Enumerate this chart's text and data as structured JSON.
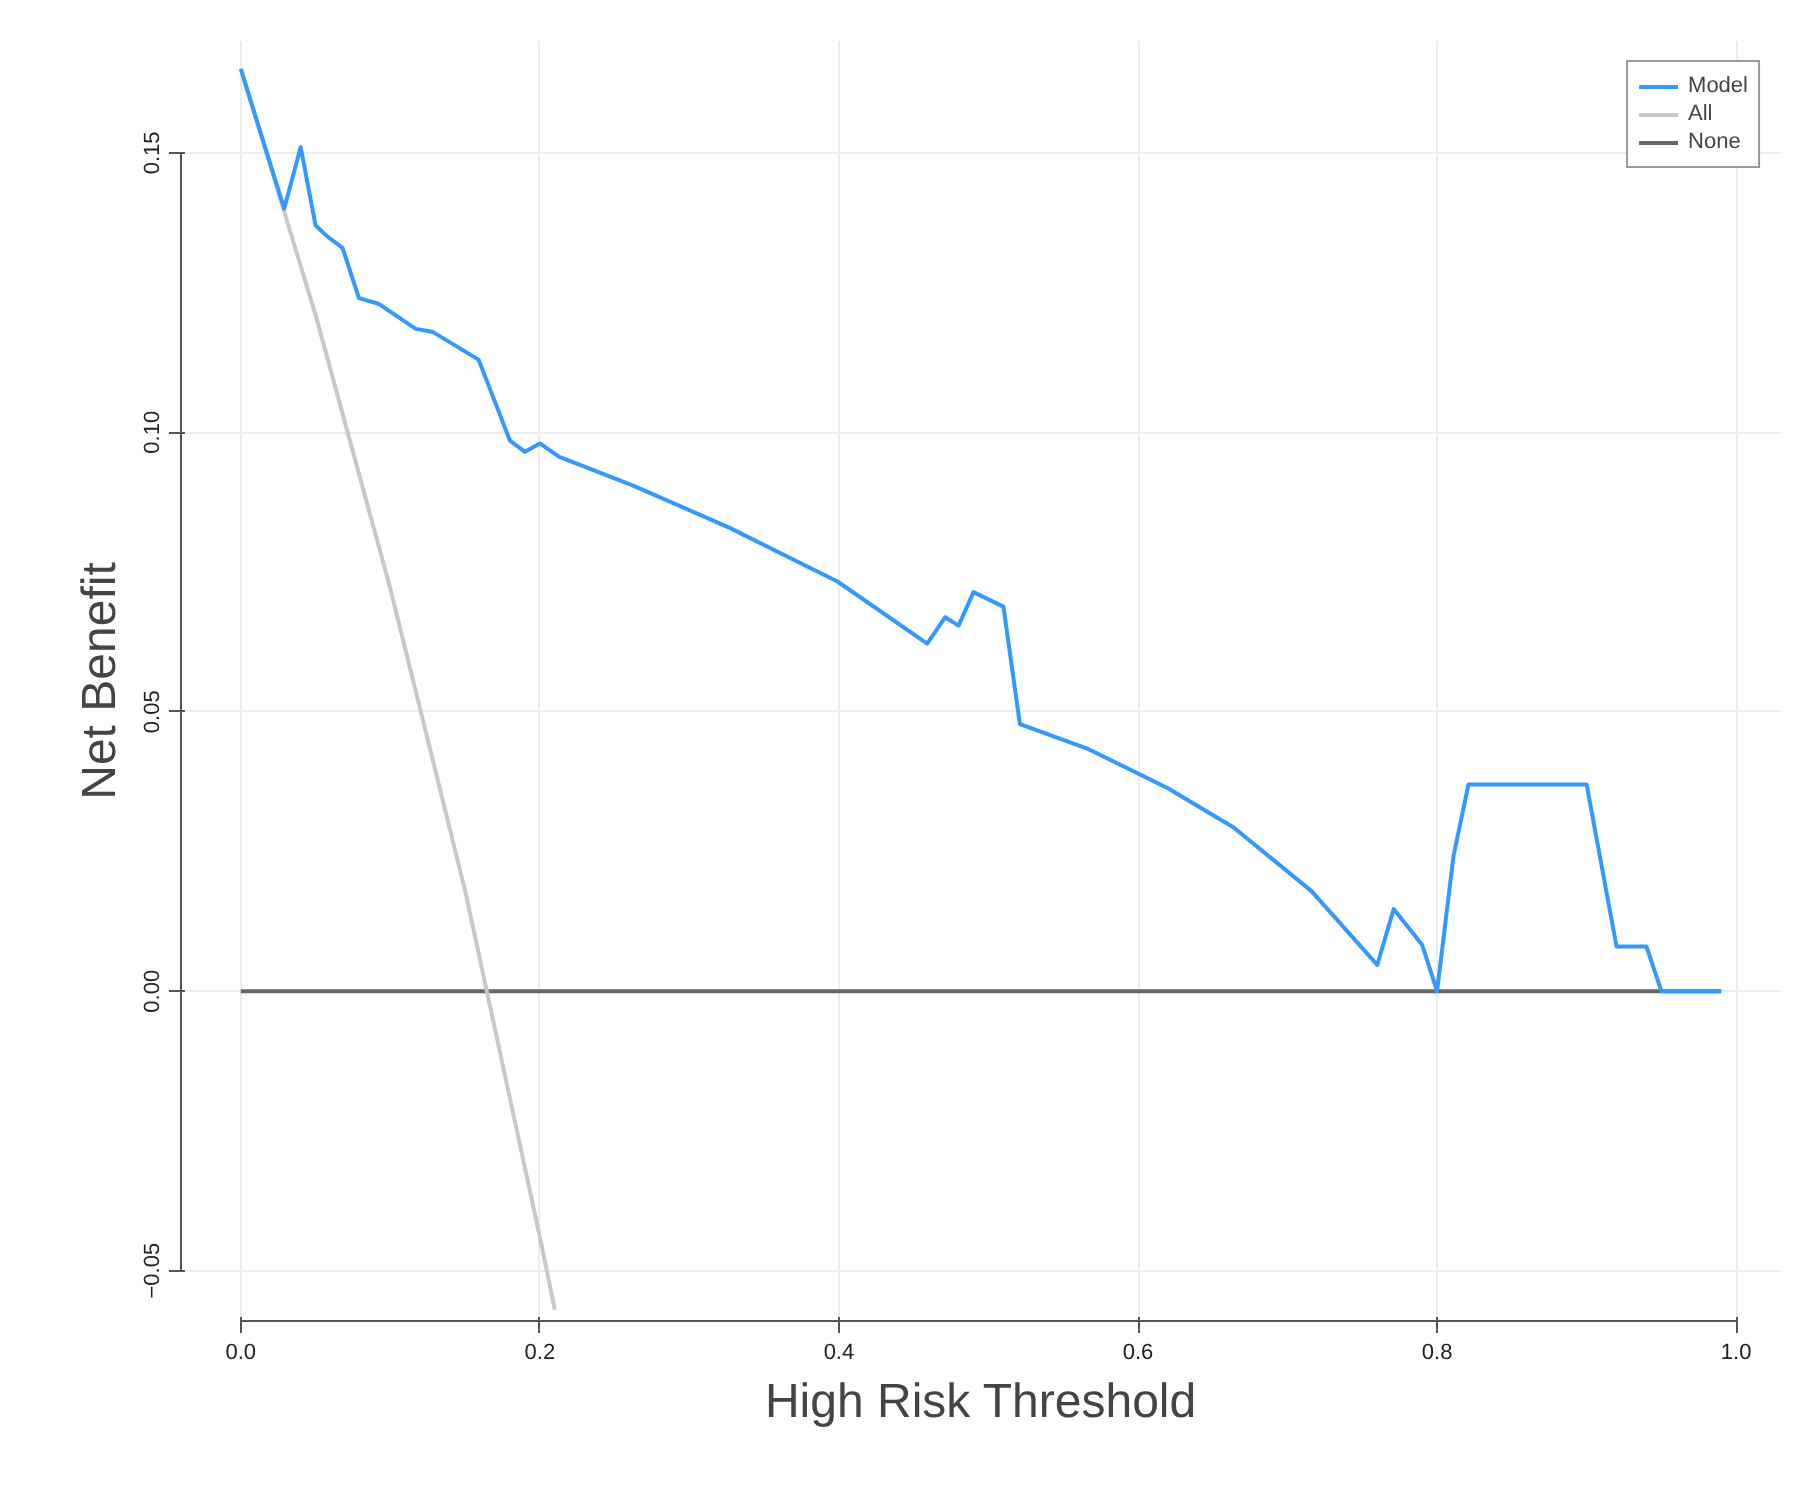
{
  "chart_data": {
    "type": "line",
    "xlabel": "High Risk Threshold",
    "ylabel": "Net Benefit",
    "xlim": [
      -0.04,
      1.03
    ],
    "ylim": [
      -0.059,
      0.17
    ],
    "xticks": [
      {
        "value": 0,
        "label": "0.0"
      },
      0.2,
      0.4,
      0.6,
      0.8,
      {
        "value": 1,
        "label": "1.0"
      }
    ],
    "yticks": [
      -0.05,
      {
        "value": 0,
        "label": "0.00"
      },
      0.05,
      {
        "value": 0.1,
        "label": "0.10"
      },
      0.15
    ],
    "grid": true,
    "legend": "top right",
    "line_style": "solid",
    "marker": "none",
    "series": [
      {
        "name": "Model",
        "color": "#3399ff",
        "x": [
          0,
          0.029,
          0.04,
          0.05,
          0.058,
          0.068,
          0.079,
          0.092,
          0.117,
          0.128,
          0.159,
          0.18,
          0.19,
          0.2,
          0.213,
          0.262,
          0.327,
          0.399,
          0.459,
          0.471,
          0.48,
          0.49,
          0.51,
          0.521,
          0.567,
          0.62,
          0.664,
          0.716,
          0.76,
          0.771,
          0.79,
          0.8,
          0.811,
          0.821,
          0.9,
          0.92,
          0.94,
          0.95,
          0.99
        ],
        "values": [
          0.165,
          0.14,
          0.151,
          0.137,
          0.135,
          0.133,
          0.124,
          0.123,
          0.1185,
          0.118,
          0.113,
          0.0985,
          0.0965,
          0.098,
          0.0956,
          0.0905,
          0.0829,
          0.0733,
          0.0622,
          0.0669,
          0.0654,
          0.0714,
          0.0688,
          0.0478,
          0.0433,
          0.0363,
          0.0293,
          0.0179,
          0.0047,
          0.0147,
          0.0083,
          0,
          0.0242,
          0.037,
          0.037,
          0.008,
          0.008,
          0,
          0
        ]
      },
      {
        "name": "All",
        "color": "#c8c8c8",
        "x": [
          0,
          0.05,
          0.1,
          0.15,
          0.2,
          0.21
        ],
        "values": [
          0.165,
          0.121,
          0.072,
          0.018,
          -0.044,
          -0.057
        ]
      },
      {
        "name": "None",
        "color": "#666666",
        "x": [
          0,
          0.99
        ],
        "values": [
          0,
          0
        ]
      }
    ]
  }
}
